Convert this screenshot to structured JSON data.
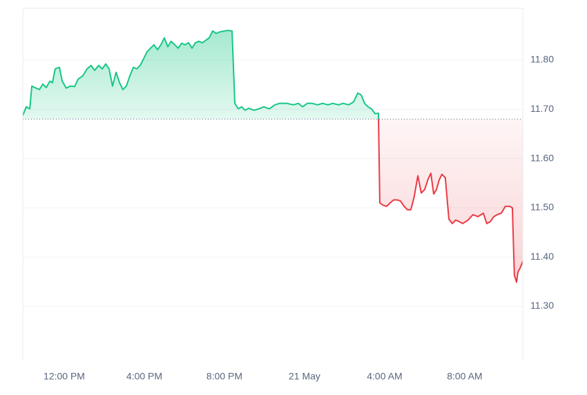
{
  "chart_data": {
    "type": "line",
    "baseline": 11.68,
    "up_color": "#16c784",
    "down_color": "#ea3943",
    "xlim": [
      9.93,
      34.9
    ],
    "ylim": [
      11.19,
      11.905
    ],
    "xticks": [
      {
        "value": 12,
        "label": "12:00 PM"
      },
      {
        "value": 16,
        "label": "4:00 PM"
      },
      {
        "value": 20,
        "label": "8:00 PM"
      },
      {
        "value": 24,
        "label": "21 May"
      },
      {
        "value": 28,
        "label": "4:00 AM"
      },
      {
        "value": 32,
        "label": "8:00 AM"
      }
    ],
    "yticks": [
      {
        "value": 11.3,
        "label": "11.30"
      },
      {
        "value": 11.4,
        "label": "11.40"
      },
      {
        "value": 11.5,
        "label": "11.50"
      },
      {
        "value": 11.6,
        "label": "11.60"
      },
      {
        "value": 11.7,
        "label": "11.70"
      },
      {
        "value": 11.8,
        "label": "11.80"
      }
    ],
    "grid": true,
    "x": [
      9.93,
      10.1,
      10.28,
      10.38,
      10.59,
      10.76,
      10.93,
      11.1,
      11.28,
      11.41,
      11.55,
      11.76,
      11.9,
      12.1,
      12.31,
      12.52,
      12.69,
      12.93,
      13.14,
      13.34,
      13.52,
      13.72,
      13.9,
      14.07,
      14.24,
      14.41,
      14.59,
      14.76,
      14.93,
      15.1,
      15.28,
      15.45,
      15.62,
      15.79,
      15.97,
      16.14,
      16.31,
      16.48,
      16.66,
      16.83,
      17.0,
      17.17,
      17.34,
      17.52,
      17.69,
      17.86,
      18.03,
      18.21,
      18.38,
      18.55,
      18.72,
      18.9,
      19.07,
      19.24,
      19.41,
      19.59,
      19.76,
      20.0,
      20.17,
      20.38,
      20.52,
      20.69,
      20.86,
      21.03,
      21.21,
      21.48,
      21.72,
      21.97,
      22.24,
      22.52,
      22.76,
      23.1,
      23.45,
      23.69,
      23.9,
      24.14,
      24.38,
      24.66,
      24.9,
      25.17,
      25.41,
      25.69,
      25.93,
      26.21,
      26.45,
      26.66,
      26.83,
      27.0,
      27.17,
      27.34,
      27.52,
      27.69,
      27.76,
      27.93,
      28.1,
      28.28,
      28.45,
      28.62,
      28.79,
      28.97,
      29.14,
      29.31,
      29.48,
      29.66,
      29.83,
      30.0,
      30.17,
      30.31,
      30.45,
      30.59,
      30.72,
      30.86,
      31.03,
      31.21,
      31.38,
      31.55,
      31.72,
      31.9,
      32.17,
      32.41,
      32.66,
      32.93,
      33.1,
      33.28,
      33.45,
      33.62,
      33.83,
      34.03,
      34.24,
      34.38,
      34.48,
      34.59,
      34.66,
      34.76,
      34.9
    ],
    "values": [
      11.687,
      11.705,
      11.701,
      11.747,
      11.743,
      11.74,
      11.751,
      11.744,
      11.757,
      11.754,
      11.782,
      11.785,
      11.757,
      11.743,
      11.747,
      11.746,
      11.761,
      11.768,
      11.782,
      11.789,
      11.779,
      11.789,
      11.782,
      11.792,
      11.782,
      11.747,
      11.775,
      11.754,
      11.74,
      11.747,
      11.768,
      11.785,
      11.782,
      11.789,
      11.803,
      11.817,
      11.824,
      11.831,
      11.821,
      11.831,
      11.845,
      11.827,
      11.838,
      11.831,
      11.824,
      11.834,
      11.831,
      11.835,
      11.824,
      11.835,
      11.838,
      11.835,
      11.84,
      11.845,
      11.859,
      11.854,
      11.857,
      11.859,
      11.86,
      11.859,
      11.712,
      11.701,
      11.705,
      11.698,
      11.702,
      11.698,
      11.701,
      11.705,
      11.701,
      11.709,
      11.712,
      11.712,
      11.709,
      11.712,
      11.705,
      11.712,
      11.712,
      11.709,
      11.712,
      11.709,
      11.712,
      11.709,
      11.712,
      11.709,
      11.715,
      11.733,
      11.729,
      11.712,
      11.705,
      11.701,
      11.691,
      11.692,
      11.51,
      11.505,
      11.503,
      11.51,
      11.516,
      11.516,
      11.514,
      11.503,
      11.496,
      11.496,
      11.523,
      11.565,
      11.53,
      11.537,
      11.558,
      11.57,
      11.528,
      11.537,
      11.556,
      11.568,
      11.561,
      11.477,
      11.468,
      11.475,
      11.472,
      11.468,
      11.475,
      11.486,
      11.482,
      11.489,
      11.468,
      11.472,
      11.482,
      11.486,
      11.489,
      11.503,
      11.503,
      11.5,
      11.363,
      11.349,
      11.37,
      11.377,
      11.391
    ]
  }
}
